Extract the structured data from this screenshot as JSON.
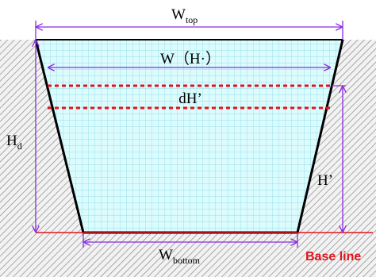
{
  "labels": {
    "w_top": {
      "main": "W",
      "sub": "top"
    },
    "w_h": "W（H·）",
    "dh": "dH’",
    "h_d": {
      "main": "H",
      "sub": "d"
    },
    "h_prime": "H’",
    "w_bottom": {
      "main": "W",
      "sub": "bottom"
    },
    "base_line": "Base line"
  }
}
